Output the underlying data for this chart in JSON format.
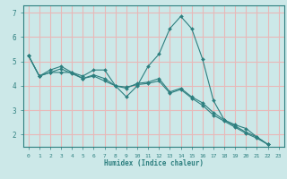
{
  "xlabel": "Humidex (Indice chaleur)",
  "background_color": "#cce8e8",
  "grid_color": "#e8b8b8",
  "line_color": "#2d7f7f",
  "marker_color": "#2d7f7f",
  "xlim": [
    -0.5,
    23.5
  ],
  "ylim": [
    1.5,
    7.3
  ],
  "yticks": [
    2,
    3,
    4,
    5,
    6,
    7
  ],
  "xticks": [
    0,
    1,
    2,
    3,
    4,
    5,
    6,
    7,
    8,
    9,
    10,
    11,
    12,
    13,
    14,
    15,
    16,
    17,
    18,
    19,
    20,
    21,
    22,
    23
  ],
  "series": [
    [
      5.25,
      4.4,
      4.65,
      4.8,
      4.55,
      4.4,
      4.65,
      4.65,
      4.0,
      3.55,
      4.0,
      4.8,
      5.3,
      6.35,
      6.85,
      6.35,
      5.1,
      3.4,
      2.6,
      2.4,
      2.25,
      1.9,
      1.6
    ],
    [
      5.25,
      4.4,
      4.55,
      4.55,
      4.55,
      4.3,
      4.45,
      4.3,
      4.0,
      3.9,
      4.1,
      4.15,
      4.3,
      3.75,
      3.9,
      3.55,
      3.3,
      2.9,
      2.6,
      2.35,
      2.1,
      1.9,
      1.6
    ],
    [
      5.25,
      4.4,
      4.55,
      4.7,
      4.5,
      4.3,
      4.4,
      4.2,
      4.0,
      3.95,
      4.05,
      4.1,
      4.2,
      3.7,
      3.85,
      3.5,
      3.2,
      2.8,
      2.55,
      2.3,
      2.05,
      1.85,
      1.6
    ]
  ]
}
